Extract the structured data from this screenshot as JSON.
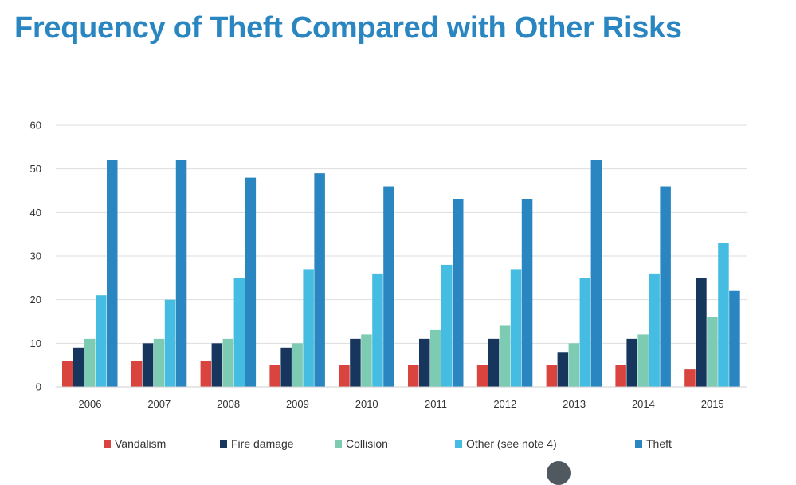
{
  "title": "Frequency of Theft Compared with Other Risks",
  "chart_data": {
    "type": "bar",
    "title": "Frequency of Theft Compared with Other Risks",
    "xlabel": "",
    "ylabel": "",
    "ylim": [
      0,
      60
    ],
    "yticks": [
      "0",
      "10",
      "20",
      "30",
      "40",
      "50",
      "60"
    ],
    "grid": true,
    "legend_position": "bottom",
    "categories": [
      "2006",
      "2007",
      "2008",
      "2009",
      "2010",
      "2011",
      "2012",
      "2013",
      "2014",
      "2015"
    ],
    "series": [
      {
        "name": "Vandalism",
        "color": "#d9443f",
        "values": [
          6,
          6,
          6,
          5,
          5,
          5,
          5,
          5,
          5,
          4
        ]
      },
      {
        "name": "Fire damage",
        "color": "#17365d",
        "values": [
          9,
          10,
          10,
          9,
          11,
          11,
          11,
          8,
          11,
          25
        ]
      },
      {
        "name": "Collision",
        "color": "#7ecbb3",
        "values": [
          11,
          11,
          11,
          10,
          12,
          13,
          14,
          10,
          12,
          16
        ]
      },
      {
        "name": "Other (see note 4)",
        "color": "#45bde2",
        "values": [
          21,
          20,
          25,
          27,
          26,
          28,
          27,
          25,
          26,
          33
        ]
      },
      {
        "name": "Theft",
        "color": "#2a86c1",
        "values": [
          52,
          52,
          48,
          49,
          46,
          43,
          43,
          52,
          46,
          22
        ]
      }
    ]
  }
}
